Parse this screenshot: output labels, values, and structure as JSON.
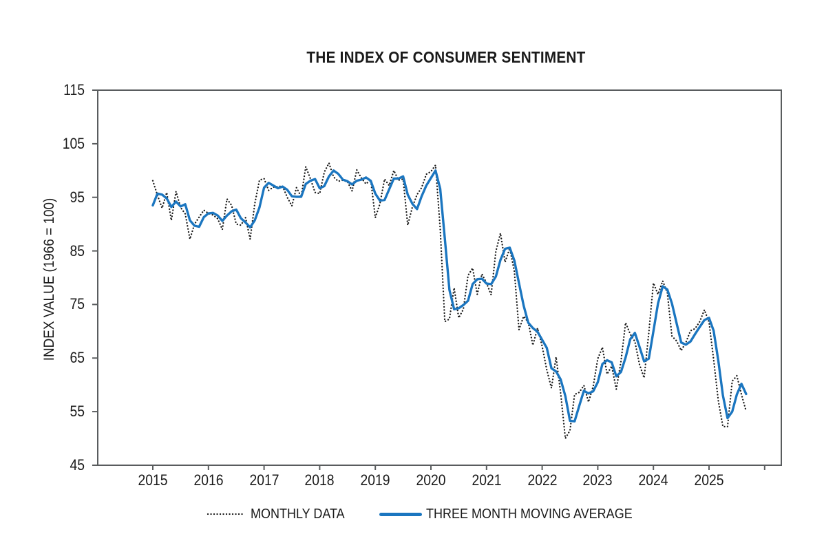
{
  "page": {
    "background": "#ffffff"
  },
  "colors": {
    "monthly_line": "#1a1a1a",
    "moving_average_line": "#1b76c0",
    "axis": "#595c5e",
    "text": "#1a1a1a",
    "background": "#ffffff"
  },
  "chart_data": {
    "type": "line",
    "title": "THE INDEX OF CONSUMER SENTIMENT",
    "xlabel": "",
    "ylabel": "INDEX VALUE (1966 = 100)",
    "ylim": [
      45,
      115
    ],
    "y_ticks": [
      115,
      105,
      95,
      85,
      75,
      65,
      55,
      45
    ],
    "x_tick_labels": [
      "2015",
      "2016",
      "2017",
      "2018",
      "2019",
      "2020",
      "2021",
      "2022",
      "2023",
      "2024",
      "2025"
    ],
    "x_unit": "month",
    "x_start": "2015-01",
    "x_end": "2025-09",
    "grid": false,
    "legend_position": "bottom",
    "axis_color": "#595c5e",
    "background": "#ffffff",
    "series": [
      {
        "name": "MONTHLY DATA",
        "style": "dotted",
        "color": "#1a1a1a",
        "values": [
          98.1,
          95.4,
          93.0,
          95.9,
          90.7,
          96.1,
          93.1,
          91.9,
          87.2,
          90.0,
          91.3,
          92.6,
          92.0,
          91.7,
          91.0,
          89.0,
          94.7,
          93.5,
          90.0,
          89.8,
          91.2,
          87.2,
          93.8,
          98.2,
          98.5,
          96.3,
          96.9,
          97.0,
          97.1,
          95.0,
          93.4,
          96.8,
          95.1,
          100.7,
          98.5,
          95.9,
          95.7,
          99.7,
          101.4,
          98.8,
          98.0,
          98.2,
          97.9,
          96.2,
          100.1,
          98.6,
          97.5,
          98.3,
          91.2,
          93.8,
          98.4,
          97.2,
          100.0,
          98.2,
          98.4,
          89.8,
          93.2,
          95.5,
          96.8,
          99.3,
          99.8,
          101.0,
          89.1,
          71.8,
          72.3,
          78.1,
          72.5,
          74.1,
          80.4,
          81.8,
          76.9,
          80.7,
          79.0,
          76.8,
          84.9,
          88.3,
          82.9,
          85.5,
          81.2,
          70.3,
          72.8,
          71.7,
          67.4,
          70.6,
          67.2,
          62.8,
          59.4,
          65.2,
          58.4,
          50.0,
          51.5,
          58.2,
          58.6,
          59.9,
          56.8,
          59.7,
          64.9,
          67.0,
          62.0,
          63.5,
          59.2,
          64.4,
          71.6,
          69.5,
          68.1,
          63.8,
          61.3,
          69.7,
          79.0,
          76.9,
          79.4,
          77.2,
          69.1,
          68.2,
          66.4,
          67.9,
          70.1,
          70.5,
          71.8,
          74.0,
          71.7,
          64.7,
          57.0,
          52.2,
          52.2,
          60.7,
          61.7,
          58.2,
          55.1
        ]
      },
      {
        "name": "THREE MONTH MOVING AVERAGE",
        "style": "solid",
        "color": "#1b76c0",
        "values": [
          93.5,
          95.7,
          95.5,
          94.8,
          93.2,
          94.2,
          93.3,
          93.7,
          90.7,
          89.7,
          89.5,
          91.3,
          92.0,
          92.1,
          91.6,
          90.6,
          91.6,
          92.4,
          92.7,
          91.1,
          90.3,
          89.4,
          90.7,
          93.1,
          96.8,
          97.7,
          97.2,
          96.7,
          97.0,
          96.4,
          95.2,
          95.1,
          95.1,
          97.5,
          98.1,
          98.4,
          96.7,
          97.1,
          98.9,
          100.0,
          99.4,
          98.3,
          98.0,
          97.4,
          98.1,
          98.3,
          98.7,
          98.1,
          95.7,
          94.4,
          94.5,
          96.5,
          98.5,
          98.5,
          98.9,
          95.5,
          93.8,
          92.8,
          95.2,
          97.2,
          98.6,
          100.0,
          96.6,
          87.3,
          77.7,
          74.1,
          74.3,
          74.9,
          75.7,
          78.8,
          79.7,
          79.8,
          78.9,
          78.8,
          80.2,
          83.3,
          85.4,
          85.6,
          83.2,
          79.0,
          74.8,
          71.6,
          70.6,
          69.9,
          68.4,
          66.9,
          63.1,
          62.5,
          61.0,
          57.9,
          53.3,
          53.2,
          56.1,
          58.9,
          58.4,
          58.8,
          60.5,
          63.9,
          64.6,
          64.2,
          61.6,
          62.4,
          65.1,
          68.5,
          69.7,
          67.1,
          64.4,
          64.9,
          70.0,
          75.2,
          78.4,
          77.8,
          75.2,
          71.5,
          67.9,
          67.5,
          68.1,
          69.5,
          70.8,
          72.1,
          72.5,
          70.1,
          64.5,
          58.0,
          53.8,
          55.0,
          58.2,
          60.2,
          58.3
        ]
      }
    ]
  }
}
